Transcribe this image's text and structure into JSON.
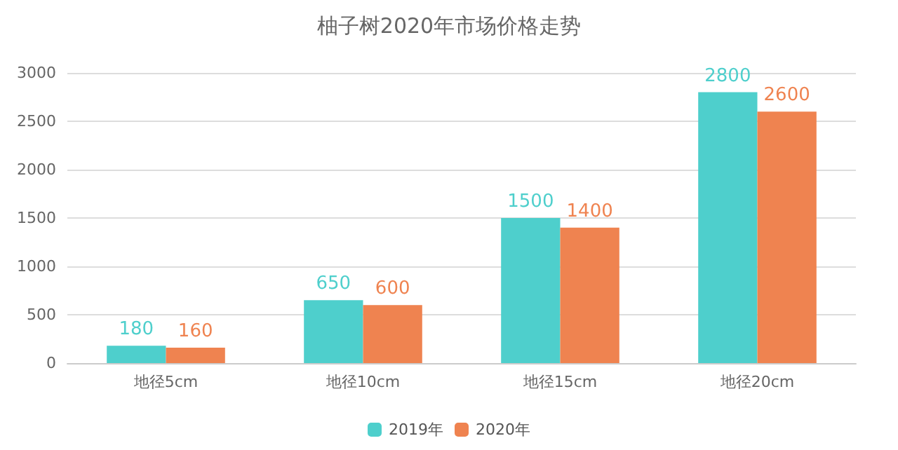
{
  "chart_data": {
    "type": "bar",
    "title": "柚子树2020年市场价格走势",
    "categories": [
      "地径5cm",
      "地径10cm",
      "地径15cm",
      "地径20cm"
    ],
    "series": [
      {
        "name": "2019年",
        "color": "#4ecfcc",
        "values": [
          180,
          650,
          1500,
          2800
        ]
      },
      {
        "name": "2020年",
        "color": "#ef8350",
        "values": [
          160,
          600,
          1400,
          2600
        ]
      }
    ],
    "ylim": [
      0,
      3000
    ],
    "yticks": [
      0,
      500,
      1000,
      1500,
      2000,
      2500,
      3000
    ],
    "grid": "y",
    "legend": "bottom",
    "data_labels": true
  }
}
